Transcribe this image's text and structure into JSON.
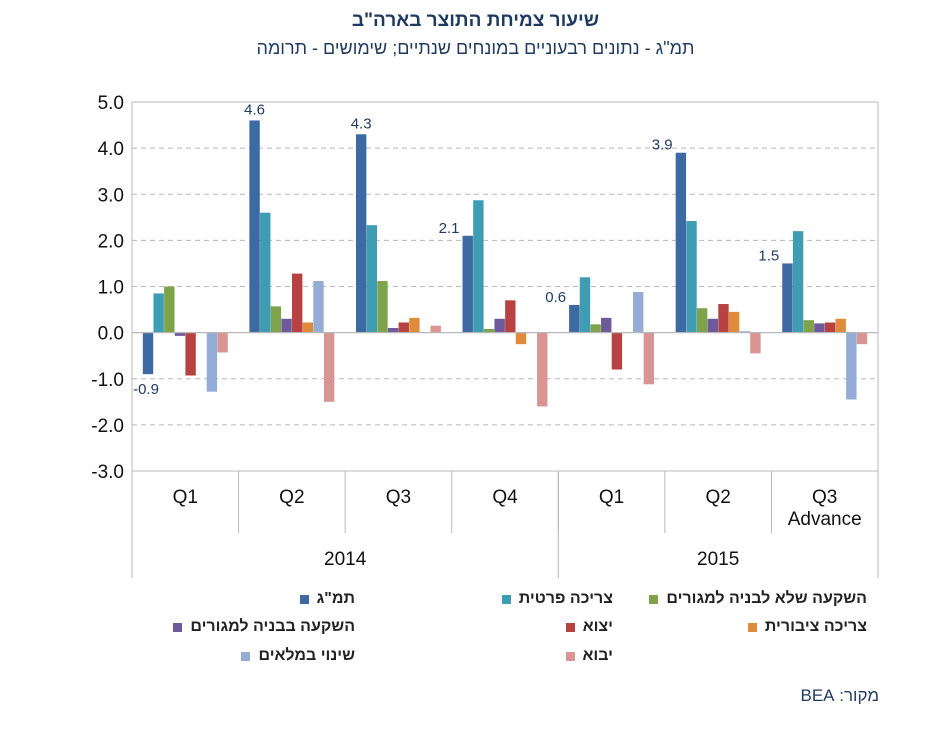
{
  "header": {
    "title": "שיעור צמיחת התוצר בארה\"ב",
    "subtitle": "תמ\"ג - נתונים רבעוניים במונחים שנתיים; שימושים - תרומה"
  },
  "source": "מקור: BEA",
  "chart_data": {
    "type": "bar",
    "ylim": [
      -3.0,
      5.0
    ],
    "yticks": [
      "5.0",
      "4.0",
      "3.0",
      "2.0",
      "1.0",
      "0.0",
      "-1.0",
      "-2.0",
      "-3.0"
    ],
    "grid": true,
    "legend_position": "bottom",
    "categories": [
      "Q1",
      "Q2",
      "Q3",
      "Q4",
      "Q1",
      "Q2",
      "Q3 Advance"
    ],
    "groups": [
      {
        "label": "2014",
        "count": 4
      },
      {
        "label": "2015",
        "count": 3
      }
    ],
    "series": [
      {
        "name": "תמ\"ג",
        "color": "#3d6aa3",
        "values": [
          -0.9,
          4.6,
          4.3,
          2.1,
          0.6,
          3.9,
          1.5
        ],
        "labels": [
          "-0.9",
          "4.6",
          "4.3",
          "2.1",
          "0.6",
          "3.9",
          "1.5"
        ]
      },
      {
        "name": "צריכה פרטית",
        "color": "#3e9db3",
        "values": [
          0.85,
          2.6,
          2.33,
          2.87,
          1.2,
          2.42,
          2.2
        ]
      },
      {
        "name": "השקעה שלא לבניה למגורים",
        "color": "#7fa34a",
        "values": [
          1.0,
          0.57,
          1.12,
          0.08,
          0.18,
          0.53,
          0.27
        ]
      },
      {
        "name": "השקעה בבניה למגורים",
        "color": "#6e5a9b",
        "values": [
          -0.07,
          0.3,
          0.1,
          0.3,
          0.32,
          0.3,
          0.2
        ]
      },
      {
        "name": "יצוא",
        "color": "#b74242",
        "values": [
          -0.93,
          1.28,
          0.22,
          0.7,
          -0.8,
          0.62,
          0.22
        ]
      },
      {
        "name": "צריכה ציבורית",
        "color": "#e08a3c",
        "values": [
          0.0,
          0.22,
          0.32,
          -0.25,
          0.0,
          0.45,
          0.3
        ]
      },
      {
        "name": "שינוי במלאים",
        "color": "#94acd6",
        "values": [
          -1.28,
          1.12,
          0.0,
          0.0,
          0.88,
          0.03,
          -1.45
        ]
      },
      {
        "name": "יבוא",
        "color": "#d99494",
        "values": [
          -0.43,
          -1.5,
          0.15,
          -1.6,
          -1.12,
          -0.45,
          -0.25
        ]
      }
    ]
  },
  "legend_layout": [
    {
      "series": 0,
      "col": 0,
      "row": 0
    },
    {
      "series": 1,
      "col": 1,
      "row": 0
    },
    {
      "series": 2,
      "col": 2,
      "row": 0
    },
    {
      "series": 3,
      "col": 0,
      "row": 1
    },
    {
      "series": 4,
      "col": 1,
      "row": 1
    },
    {
      "series": 5,
      "col": 2,
      "row": 1
    },
    {
      "series": 6,
      "col": 0,
      "row": 2
    },
    {
      "series": 7,
      "col": 1,
      "row": 2
    }
  ]
}
